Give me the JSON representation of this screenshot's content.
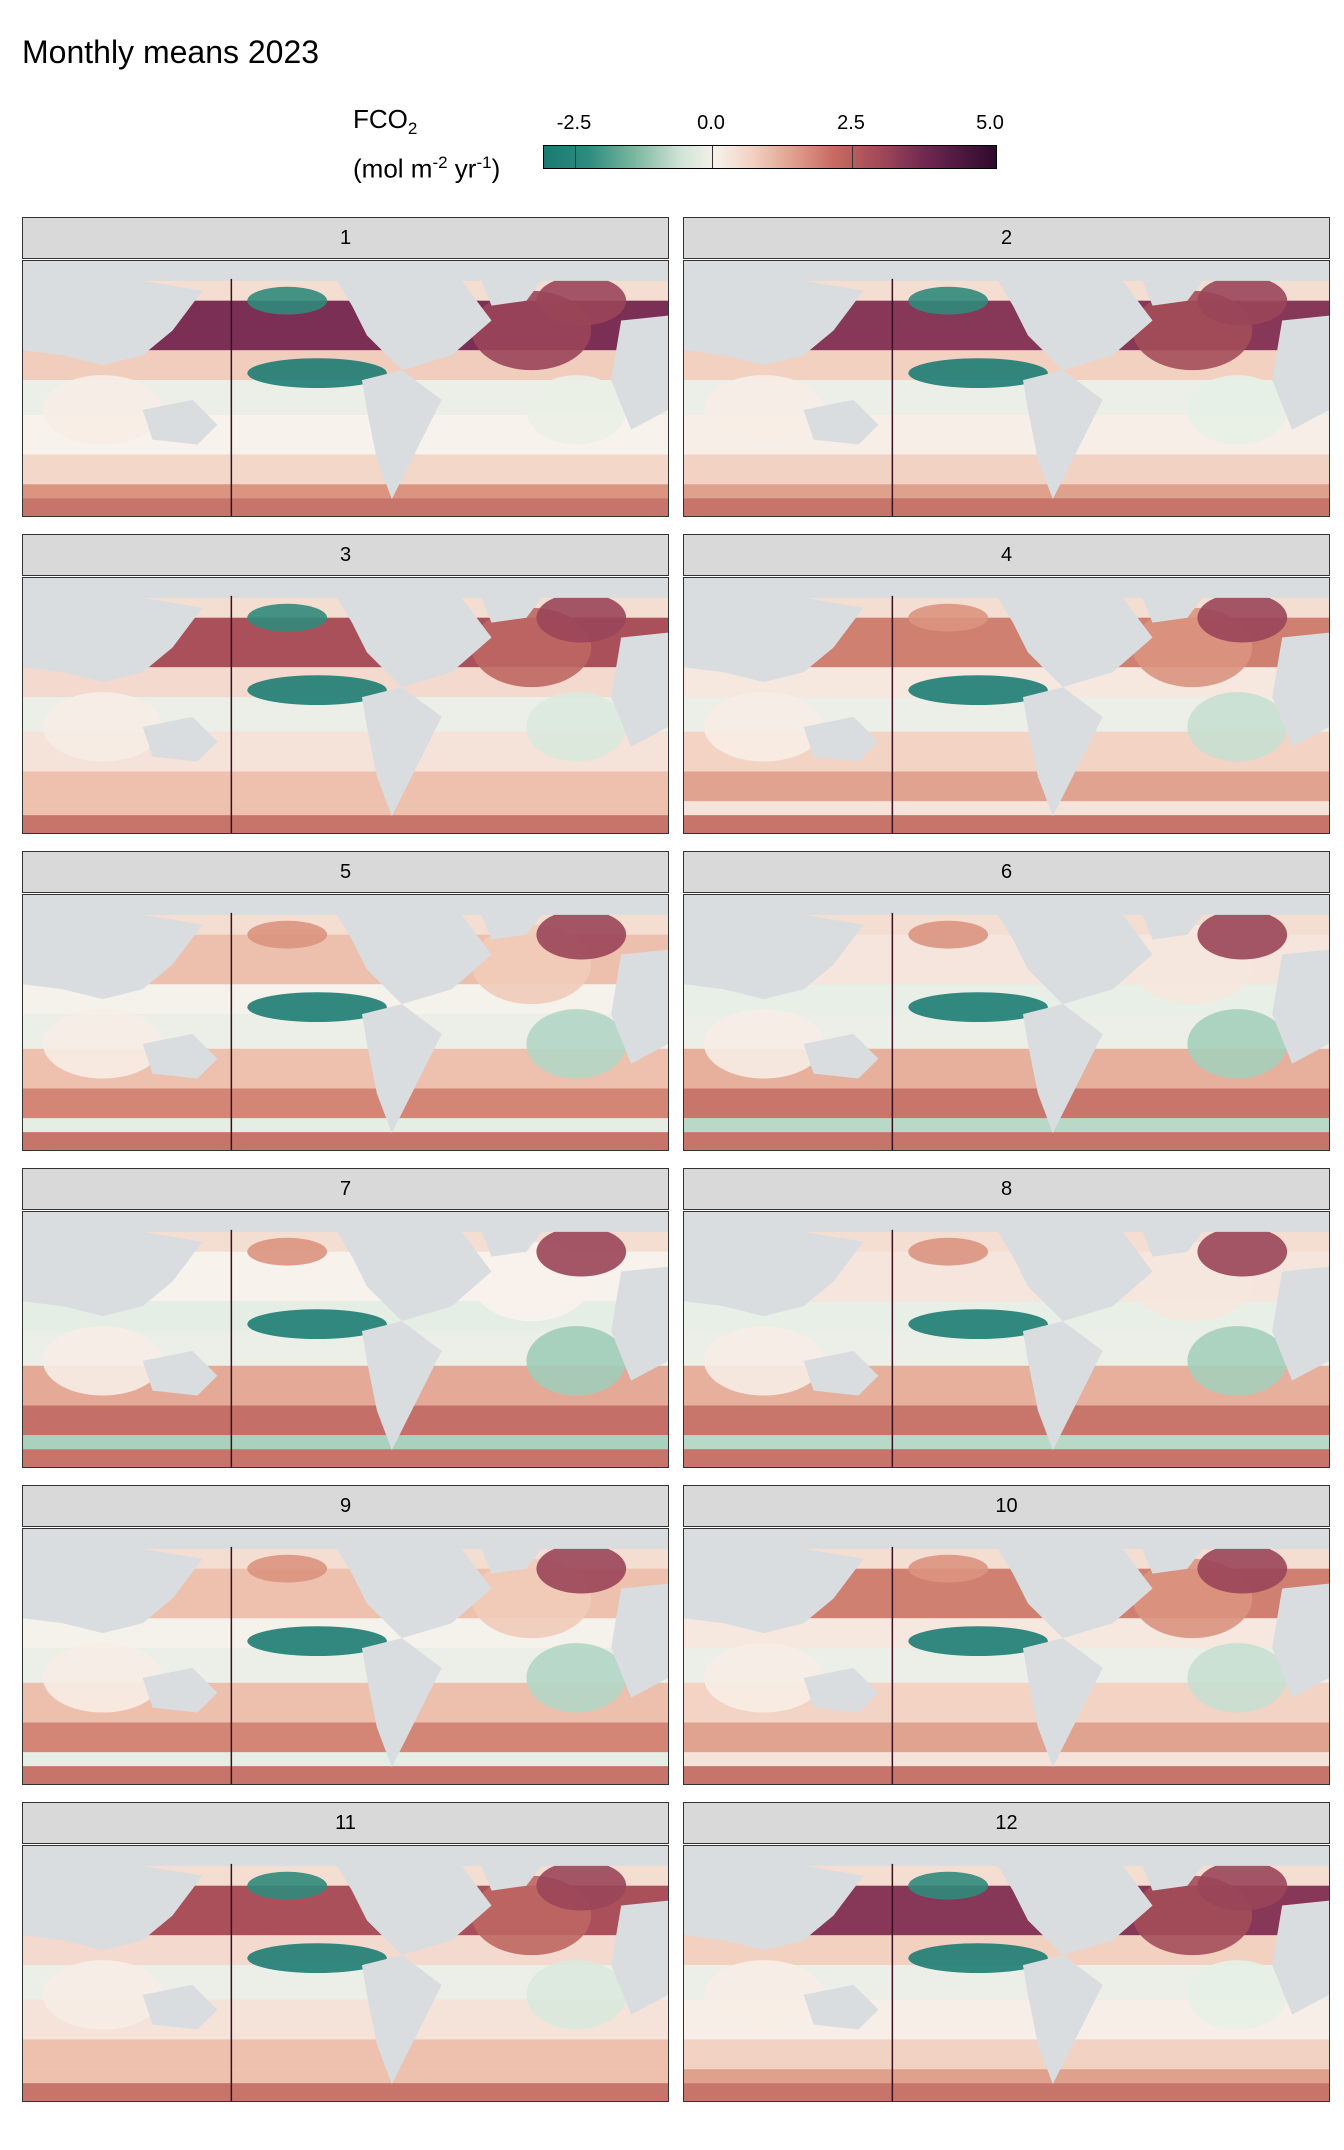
{
  "title": "Monthly means 2023",
  "legend": {
    "label_line1": "FCO",
    "label_sub": "2",
    "label_line2_a": "(mol m",
    "label_sup1": "-2",
    "label_line2_b": " yr",
    "label_sup2": "-1",
    "label_line2_c": ")",
    "tick_labels": [
      "-2.5",
      "0.0",
      "2.5",
      "5.0"
    ],
    "colors": [
      "#1a7a72",
      "#7ab79f",
      "#f6f1ea",
      "#c86b62",
      "#6e2650",
      "#2e0a2c"
    ]
  },
  "chart_data": {
    "type": "heatmap",
    "title": "Monthly means 2023",
    "variable": "FCO2",
    "units": "mol m-2 yr-1",
    "color_scale": {
      "min": -3.1,
      "max": 5.0,
      "midpoint": 0.0,
      "ticks": [
        -2.5,
        0.0,
        2.5,
        5.0
      ]
    },
    "land_color": "#d9dde0",
    "facets": [
      {
        "label": "1"
      },
      {
        "label": "2"
      },
      {
        "label": "3"
      },
      {
        "label": "4"
      },
      {
        "label": "5"
      },
      {
        "label": "6"
      },
      {
        "label": "7"
      },
      {
        "label": "8"
      },
      {
        "label": "9"
      },
      {
        "label": "10"
      },
      {
        "label": "11"
      },
      {
        "label": "12"
      }
    ]
  }
}
